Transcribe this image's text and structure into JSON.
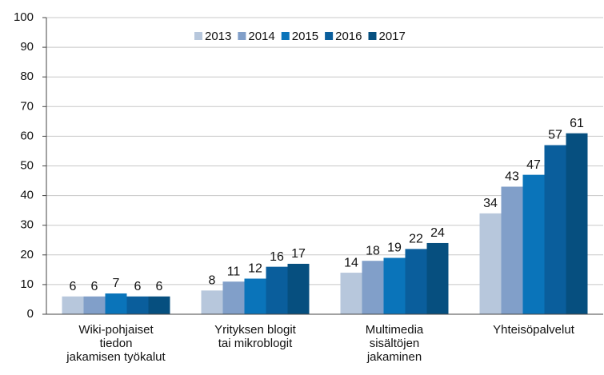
{
  "chart_data": {
    "type": "bar",
    "categories": [
      [
        "Wiki-pohjaiset",
        "tiedon",
        "jakamisen työkalut"
      ],
      [
        "Yrityksen blogit",
        "tai mikroblogit"
      ],
      [
        "Multimedia",
        "sisältöjen",
        "jakaminen"
      ],
      [
        "Yhteisöpalvelut"
      ]
    ],
    "series": [
      {
        "name": "2013",
        "color": "#b7c7dc",
        "values": [
          6,
          8,
          14,
          34
        ]
      },
      {
        "name": "2014",
        "color": "#819fc9",
        "values": [
          6,
          11,
          18,
          43
        ]
      },
      {
        "name": "2015",
        "color": "#0a74ba",
        "values": [
          7,
          12,
          19,
          47
        ]
      },
      {
        "name": "2016",
        "color": "#0a5e9c",
        "values": [
          6,
          16,
          22,
          57
        ]
      },
      {
        "name": "2017",
        "color": "#064f7f",
        "values": [
          6,
          17,
          24,
          61
        ]
      }
    ],
    "ylim": [
      0,
      100
    ],
    "yticks": [
      0,
      10,
      20,
      30,
      40,
      50,
      60,
      70,
      80,
      90,
      100
    ],
    "grid": true,
    "legend": "top"
  }
}
